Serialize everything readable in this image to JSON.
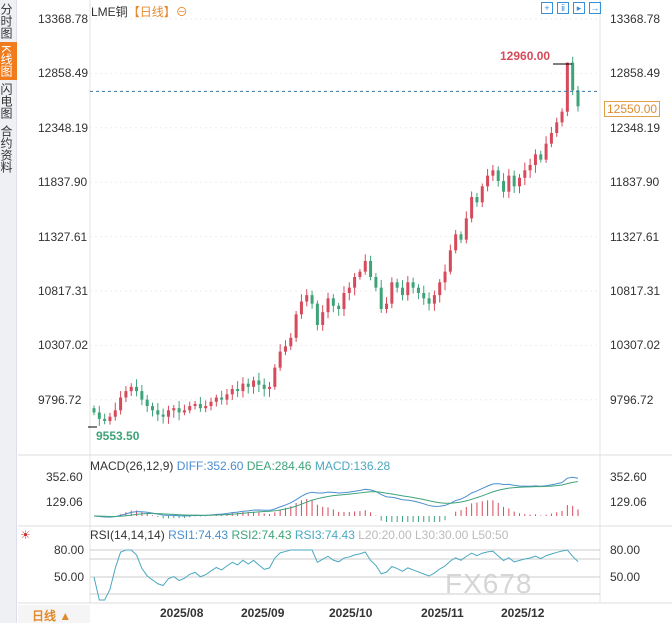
{
  "sidebar": {
    "tabs": [
      "分时图",
      "K线图",
      "闪电图",
      "合约资料"
    ],
    "active": 1
  },
  "header": {
    "symbol": "LME铜",
    "period": "【日线】",
    "period_icon": "circle-minus-icon"
  },
  "toolbar": [
    "crosshair-icon",
    "compare-icon",
    "draw-icon",
    "expand-icon"
  ],
  "y_axis_labels": [
    "13368.78",
    "12858.49",
    "12348.19",
    "11837.90",
    "11327.61",
    "10817.31",
    "10307.02",
    "9796.72"
  ],
  "high_label": "12960.00",
  "low_label": "9553.50",
  "current_price": "12550.00",
  "macd": {
    "title": "MACD(26,12,9)",
    "diff": "DIFF:352.60",
    "dea": "DEA:284.46",
    "macd": "MACD:136.28",
    "axis": [
      "352.60",
      "129.06"
    ]
  },
  "rsi": {
    "title": "RSI(14,14,14)",
    "rsi1": "RSI1:74.43",
    "rsi2": "RSI2:74.43",
    "rsi3": "RSI3:74.43",
    "l20": "L20:20.00",
    "l30": "L30:30.00",
    "l50": "L50:50",
    "axis": [
      "80.00",
      "50.00"
    ]
  },
  "x_axis": [
    "2025/08",
    "2025/09",
    "2025/10",
    "2025/11",
    "2025/12"
  ],
  "bottom_tab": "日线 ▲",
  "watermark": "FX678",
  "colors": {
    "up": "#d64a5b",
    "down": "#3fa37a",
    "accent": "#f07c1e"
  },
  "chart_data": {
    "type": "candlestick",
    "ylim": [
      9553.5,
      13368.78
    ],
    "closes": [
      9680,
      9620,
      9600,
      9640,
      9700,
      9820,
      9880,
      9920,
      9880,
      9800,
      9740,
      9700,
      9660,
      9640,
      9700,
      9720,
      9680,
      9700,
      9740,
      9760,
      9720,
      9740,
      9780,
      9820,
      9800,
      9850,
      9900,
      9880,
      9950,
      9920,
      9980,
      9940,
      9900,
      9920,
      10100,
      10250,
      10300,
      10380,
      10600,
      10720,
      10780,
      10700,
      10500,
      10620,
      10750,
      10680,
      10650,
      10800,
      10850,
      10950,
      11000,
      11100,
      10950,
      10850,
      10650,
      10700,
      10900,
      10850,
      10780,
      10900,
      10850,
      10800,
      10750,
      10700,
      10780,
      10900,
      11000,
      11200,
      11350,
      11300,
      11500,
      11700,
      11650,
      11800,
      11900,
      11950,
      11850,
      11750,
      11900,
      11800,
      11880,
      11950,
      12000,
      12100,
      12050,
      12200,
      12300,
      12400,
      12500,
      12960,
      12700,
      12550
    ]
  }
}
